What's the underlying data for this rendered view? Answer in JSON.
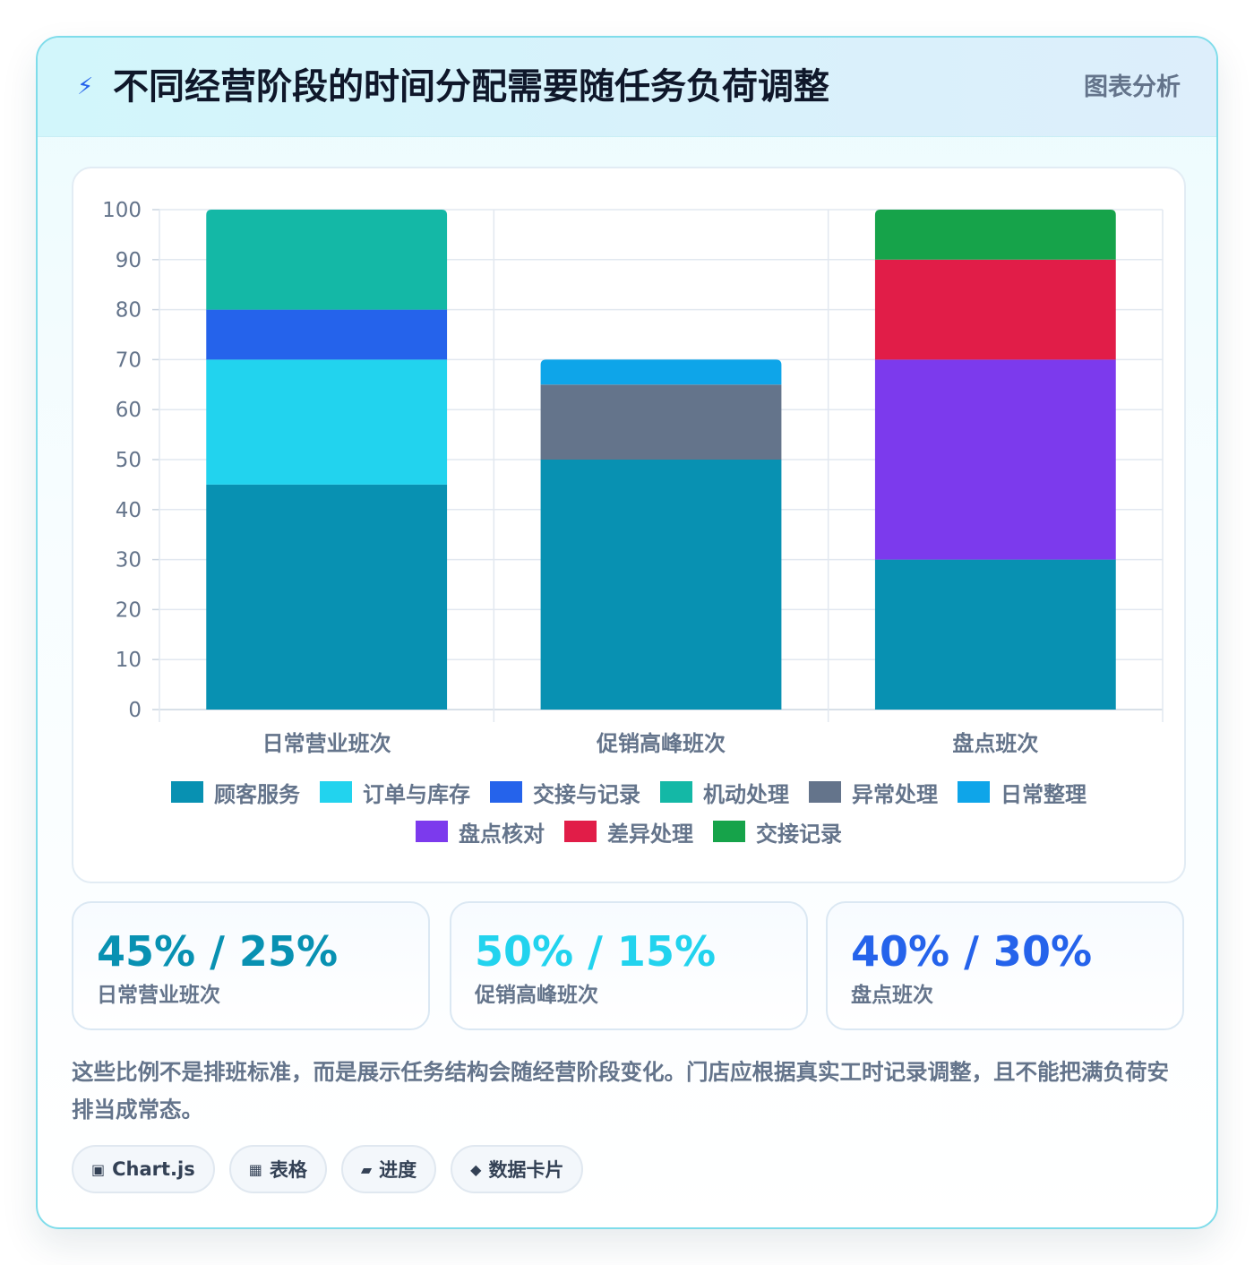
{
  "header": {
    "icon": "⚡",
    "icon_name": "lightning-icon",
    "title": "不同经营阶段的时间分配需要随任务负荷调整",
    "tag": "图表分析"
  },
  "chart_data": {
    "type": "bar",
    "stacked": true,
    "categories": [
      "日常营业班次",
      "促销高峰班次",
      "盘点班次"
    ],
    "series": [
      {
        "name": "顾客服务",
        "color": "#0891b2",
        "values": [
          45,
          50,
          30
        ]
      },
      {
        "name": "订单与库存",
        "color": "#22d3ee",
        "values": [
          25,
          0,
          0
        ]
      },
      {
        "name": "交接与记录",
        "color": "#2563eb",
        "values": [
          10,
          0,
          0
        ]
      },
      {
        "name": "机动处理",
        "color": "#14b8a6",
        "values": [
          20,
          0,
          0
        ]
      },
      {
        "name": "异常处理",
        "color": "#64748b",
        "values": [
          0,
          15,
          0
        ]
      },
      {
        "name": "日常整理",
        "color": "#0ea5e9",
        "values": [
          0,
          5,
          0
        ]
      },
      {
        "name": "盘点核对",
        "color": "#7c3aed",
        "values": [
          0,
          0,
          40
        ]
      },
      {
        "name": "差异处理",
        "color": "#e11d48",
        "values": [
          0,
          0,
          20
        ]
      },
      {
        "name": "交接记录",
        "color": "#16a34a",
        "values": [
          0,
          0,
          10
        ]
      }
    ],
    "ylim": [
      0,
      100
    ],
    "yticks": [
      0,
      10,
      20,
      30,
      40,
      50,
      60,
      70,
      80,
      90,
      100
    ],
    "grid": true,
    "legend": "bottom"
  },
  "legend_rows": [
    [
      "顾客服务",
      "订单与库存",
      "交接与记录",
      "机动处理",
      "异常处理",
      "日常整理"
    ],
    [
      "盘点核对",
      "差异处理",
      "交接记录"
    ]
  ],
  "stats": [
    {
      "value": "45% / 25%",
      "label": "日常营业班次",
      "color": "#0891b2"
    },
    {
      "value": "50% / 15%",
      "label": "促销高峰班次",
      "color": "#22d3ee"
    },
    {
      "value": "40% / 30%",
      "label": "盘点班次",
      "color": "#2563eb"
    }
  ],
  "note": "这些比例不是排班标准，而是展示任务结构会随经营阶段变化。门店应根据真实工时记录调整，且不能把满负荷安排当成常态。",
  "chips": [
    {
      "icon": "▣",
      "icon_name": "chart-icon",
      "label": "Chart.js"
    },
    {
      "icon": "▦",
      "icon_name": "table-icon",
      "label": "表格"
    },
    {
      "icon": "▰",
      "icon_name": "progress-icon",
      "label": "进度"
    },
    {
      "icon": "◆",
      "icon_name": "diamond-icon",
      "label": "数据卡片"
    }
  ]
}
